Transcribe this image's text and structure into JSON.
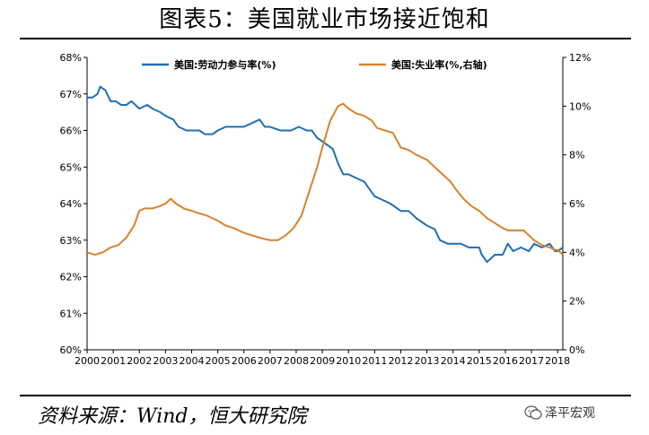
{
  "header": {
    "title": "图表5：美国就业市场接近饱和"
  },
  "footer": {
    "source": "资料来源：Wind，恒大研究院",
    "brand": "泽平宏观"
  },
  "colors": {
    "participation": "#1f6fb4",
    "unemployment": "#d9822b",
    "axis": "#000000"
  },
  "chart_data": {
    "type": "line",
    "title": "",
    "xlabel": "",
    "ylabel": "",
    "ylim": [
      60,
      68
    ],
    "y2lim": [
      0,
      12
    ],
    "xlim": [
      2000,
      2018.2
    ],
    "grid": false,
    "legend_position": "top",
    "x_ticks": [
      "2000",
      "2001",
      "2002",
      "2003",
      "2004",
      "2005",
      "2006",
      "2007",
      "2008",
      "2009",
      "2010",
      "2011",
      "2012",
      "2013",
      "2014",
      "2015",
      "2016",
      "2017",
      "2018"
    ],
    "y_ticks": [
      "60%",
      "61%",
      "62%",
      "63%",
      "64%",
      "65%",
      "66%",
      "67%",
      "68%"
    ],
    "y2_ticks": [
      "0%",
      "2%",
      "4%",
      "6%",
      "8%",
      "10%",
      "12%"
    ],
    "series": [
      {
        "name": "美国:劳动力参与率(%)",
        "axis": "left",
        "points": [
          [
            2000.0,
            66.9
          ],
          [
            2000.2,
            66.9
          ],
          [
            2000.4,
            67.0
          ],
          [
            2000.5,
            67.2
          ],
          [
            2000.7,
            67.1
          ],
          [
            2000.9,
            66.8
          ],
          [
            2001.1,
            66.8
          ],
          [
            2001.3,
            66.7
          ],
          [
            2001.5,
            66.7
          ],
          [
            2001.7,
            66.8
          ],
          [
            2002.0,
            66.6
          ],
          [
            2002.3,
            66.7
          ],
          [
            2002.5,
            66.6
          ],
          [
            2002.8,
            66.5
          ],
          [
            2003.0,
            66.4
          ],
          [
            2003.3,
            66.3
          ],
          [
            2003.5,
            66.1
          ],
          [
            2003.8,
            66.0
          ],
          [
            2004.0,
            66.0
          ],
          [
            2004.3,
            66.0
          ],
          [
            2004.5,
            65.9
          ],
          [
            2004.8,
            65.9
          ],
          [
            2005.0,
            66.0
          ],
          [
            2005.3,
            66.1
          ],
          [
            2005.6,
            66.1
          ],
          [
            2006.0,
            66.1
          ],
          [
            2006.3,
            66.2
          ],
          [
            2006.6,
            66.3
          ],
          [
            2006.8,
            66.1
          ],
          [
            2007.0,
            66.1
          ],
          [
            2007.4,
            66.0
          ],
          [
            2007.8,
            66.0
          ],
          [
            2008.1,
            66.1
          ],
          [
            2008.4,
            66.0
          ],
          [
            2008.6,
            66.0
          ],
          [
            2008.8,
            65.8
          ],
          [
            2009.0,
            65.7
          ],
          [
            2009.2,
            65.6
          ],
          [
            2009.4,
            65.5
          ],
          [
            2009.6,
            65.1
          ],
          [
            2009.8,
            64.8
          ],
          [
            2010.0,
            64.8
          ],
          [
            2010.3,
            64.7
          ],
          [
            2010.6,
            64.6
          ],
          [
            2011.0,
            64.2
          ],
          [
            2011.3,
            64.1
          ],
          [
            2011.6,
            64.0
          ],
          [
            2012.0,
            63.8
          ],
          [
            2012.3,
            63.8
          ],
          [
            2012.6,
            63.6
          ],
          [
            2013.0,
            63.4
          ],
          [
            2013.3,
            63.3
          ],
          [
            2013.5,
            63.0
          ],
          [
            2013.8,
            62.9
          ],
          [
            2014.0,
            62.9
          ],
          [
            2014.3,
            62.9
          ],
          [
            2014.6,
            62.8
          ],
          [
            2015.0,
            62.8
          ],
          [
            2015.1,
            62.6
          ],
          [
            2015.3,
            62.4
          ],
          [
            2015.6,
            62.6
          ],
          [
            2015.9,
            62.6
          ],
          [
            2016.1,
            62.9
          ],
          [
            2016.3,
            62.7
          ],
          [
            2016.6,
            62.8
          ],
          [
            2016.9,
            62.7
          ],
          [
            2017.1,
            62.9
          ],
          [
            2017.4,
            62.8
          ],
          [
            2017.7,
            62.9
          ],
          [
            2017.9,
            62.7
          ],
          [
            2018.0,
            62.7
          ],
          [
            2018.2,
            62.8
          ]
        ]
      },
      {
        "name": "美国:失业率(%,右轴)",
        "axis": "right",
        "points": [
          [
            2000.0,
            4.0
          ],
          [
            2000.3,
            3.9
          ],
          [
            2000.6,
            4.0
          ],
          [
            2000.9,
            4.2
          ],
          [
            2001.2,
            4.3
          ],
          [
            2001.5,
            4.6
          ],
          [
            2001.8,
            5.1
          ],
          [
            2002.0,
            5.7
          ],
          [
            2002.2,
            5.8
          ],
          [
            2002.5,
            5.8
          ],
          [
            2002.8,
            5.9
          ],
          [
            2003.0,
            6.0
          ],
          [
            2003.2,
            6.2
          ],
          [
            2003.4,
            6.0
          ],
          [
            2003.7,
            5.8
          ],
          [
            2004.0,
            5.7
          ],
          [
            2004.3,
            5.6
          ],
          [
            2004.6,
            5.5
          ],
          [
            2005.0,
            5.3
          ],
          [
            2005.3,
            5.1
          ],
          [
            2005.6,
            5.0
          ],
          [
            2006.0,
            4.8
          ],
          [
            2006.3,
            4.7
          ],
          [
            2006.6,
            4.6
          ],
          [
            2007.0,
            4.5
          ],
          [
            2007.3,
            4.5
          ],
          [
            2007.6,
            4.7
          ],
          [
            2007.9,
            5.0
          ],
          [
            2008.2,
            5.5
          ],
          [
            2008.5,
            6.5
          ],
          [
            2008.8,
            7.5
          ],
          [
            2009.0,
            8.3
          ],
          [
            2009.3,
            9.4
          ],
          [
            2009.6,
            10.0
          ],
          [
            2009.8,
            10.1
          ],
          [
            2010.0,
            9.9
          ],
          [
            2010.3,
            9.7
          ],
          [
            2010.6,
            9.6
          ],
          [
            2010.9,
            9.4
          ],
          [
            2011.1,
            9.1
          ],
          [
            2011.4,
            9.0
          ],
          [
            2011.7,
            8.9
          ],
          [
            2012.0,
            8.3
          ],
          [
            2012.3,
            8.2
          ],
          [
            2012.6,
            8.0
          ],
          [
            2013.0,
            7.8
          ],
          [
            2013.3,
            7.5
          ],
          [
            2013.6,
            7.2
          ],
          [
            2013.9,
            6.9
          ],
          [
            2014.1,
            6.6
          ],
          [
            2014.4,
            6.2
          ],
          [
            2014.7,
            5.9
          ],
          [
            2015.0,
            5.7
          ],
          [
            2015.3,
            5.4
          ],
          [
            2015.6,
            5.2
          ],
          [
            2015.9,
            5.0
          ],
          [
            2016.1,
            4.9
          ],
          [
            2016.4,
            4.9
          ],
          [
            2016.7,
            4.9
          ],
          [
            2016.9,
            4.7
          ],
          [
            2017.1,
            4.5
          ],
          [
            2017.4,
            4.3
          ],
          [
            2017.7,
            4.2
          ],
          [
            2017.9,
            4.1
          ],
          [
            2018.0,
            4.1
          ],
          [
            2018.2,
            3.9
          ]
        ]
      }
    ]
  }
}
